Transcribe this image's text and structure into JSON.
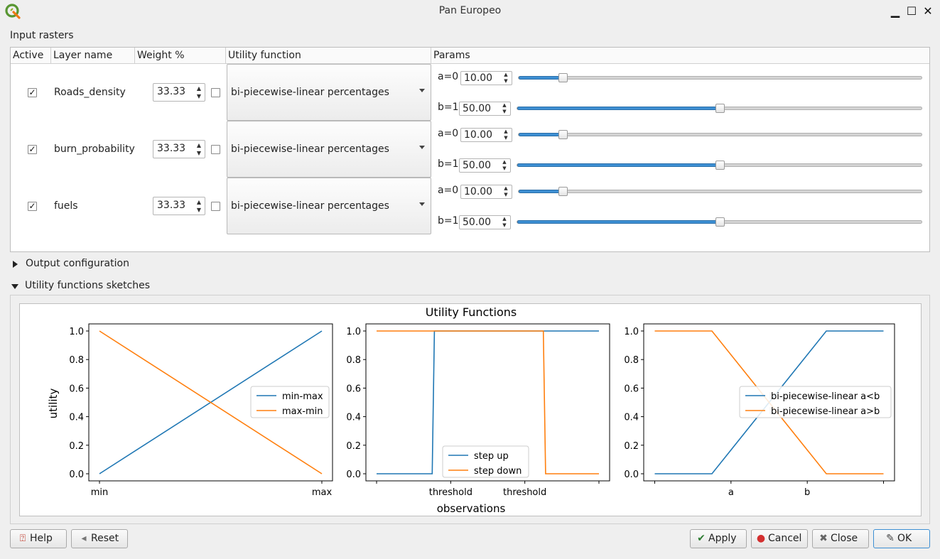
{
  "window": {
    "title": "Pan Europeo",
    "controls": {
      "minimize": "▁",
      "maximize": "☐",
      "close": "✕"
    }
  },
  "input_rasters": {
    "label": "Input rasters",
    "columns": [
      "Active",
      "Layer name",
      "Weight %",
      "Utility function",
      "Params"
    ],
    "rows": [
      {
        "active": "✓",
        "layer": "Roads_density",
        "weight": "33.33",
        "function": "bi-piecewise-linear percentages",
        "a_label": "a=0",
        "a_value": "10.00",
        "a_fill": 0.11,
        "b_label": "b=1",
        "b_value": "50.00",
        "b_fill": 0.5
      },
      {
        "active": "✓",
        "layer": "burn_probability",
        "weight": "33.33",
        "function": "bi-piecewise-linear percentages",
        "a_label": "a=0",
        "a_value": "10.00",
        "a_fill": 0.11,
        "b_label": "b=1",
        "b_value": "50.00",
        "b_fill": 0.5
      },
      {
        "active": "✓",
        "layer": "fuels",
        "weight": "33.33",
        "function": "bi-piecewise-linear percentages",
        "a_label": "a=0",
        "a_value": "10.00",
        "a_fill": 0.11,
        "b_label": "b=1",
        "b_value": "50.00",
        "b_fill": 0.5
      }
    ]
  },
  "output_configuration": {
    "label": "Output configuration",
    "expanded": false
  },
  "utility_sketches": {
    "label": "Utility functions sketches",
    "expanded": true
  },
  "chart_data": {
    "type": "line",
    "title": "Utility Functions",
    "ylabel": "utility",
    "xlabel": "observations",
    "ylim": [
      0,
      1
    ],
    "yticks": [
      "0.0",
      "0.2",
      "0.4",
      "0.6",
      "0.8",
      "1.0"
    ],
    "series_colors": {
      "first": "#1f77b4",
      "second": "#ff7f0e"
    },
    "subplots": [
      {
        "xticks": [
          "min",
          "max"
        ],
        "legend_position": "center-right",
        "series": [
          {
            "name": "min-max",
            "points": [
              [
                0,
                0
              ],
              [
                1,
                1
              ]
            ]
          },
          {
            "name": "max-min",
            "points": [
              [
                0,
                1
              ],
              [
                1,
                0
              ]
            ]
          }
        ]
      },
      {
        "xticks": [
          "",
          "threshold",
          "threshold",
          ""
        ],
        "legend_position": "bottom-center",
        "series": [
          {
            "name": "step up",
            "points": [
              [
                0,
                0
              ],
              [
                0.25,
                0
              ],
              [
                0.26,
                1
              ],
              [
                1,
                1
              ]
            ]
          },
          {
            "name": "step down",
            "points": [
              [
                0,
                1
              ],
              [
                0.75,
                1
              ],
              [
                0.76,
                0
              ],
              [
                1,
                0
              ]
            ]
          }
        ]
      },
      {
        "xticks": [
          "",
          "a",
          "b",
          ""
        ],
        "legend_position": "center-right",
        "series": [
          {
            "name": "bi-piecewise-linear a<b",
            "points": [
              [
                0,
                0
              ],
              [
                0.25,
                0
              ],
              [
                0.75,
                1
              ],
              [
                1,
                1
              ]
            ]
          },
          {
            "name": "bi-piecewise-linear a>b",
            "points": [
              [
                0,
                1
              ],
              [
                0.25,
                1
              ],
              [
                0.75,
                0
              ],
              [
                1,
                0
              ]
            ]
          }
        ]
      }
    ]
  },
  "buttons": {
    "help": {
      "label": "Help",
      "icon": "⍰"
    },
    "reset": {
      "label": "Reset",
      "icon": "◂"
    },
    "apply": {
      "label": "Apply",
      "icon": "✔"
    },
    "cancel": {
      "label": "Cancel",
      "icon": "●"
    },
    "close": {
      "label": "Close",
      "icon": "✖"
    },
    "ok": {
      "label": "OK",
      "icon": "✎"
    }
  }
}
